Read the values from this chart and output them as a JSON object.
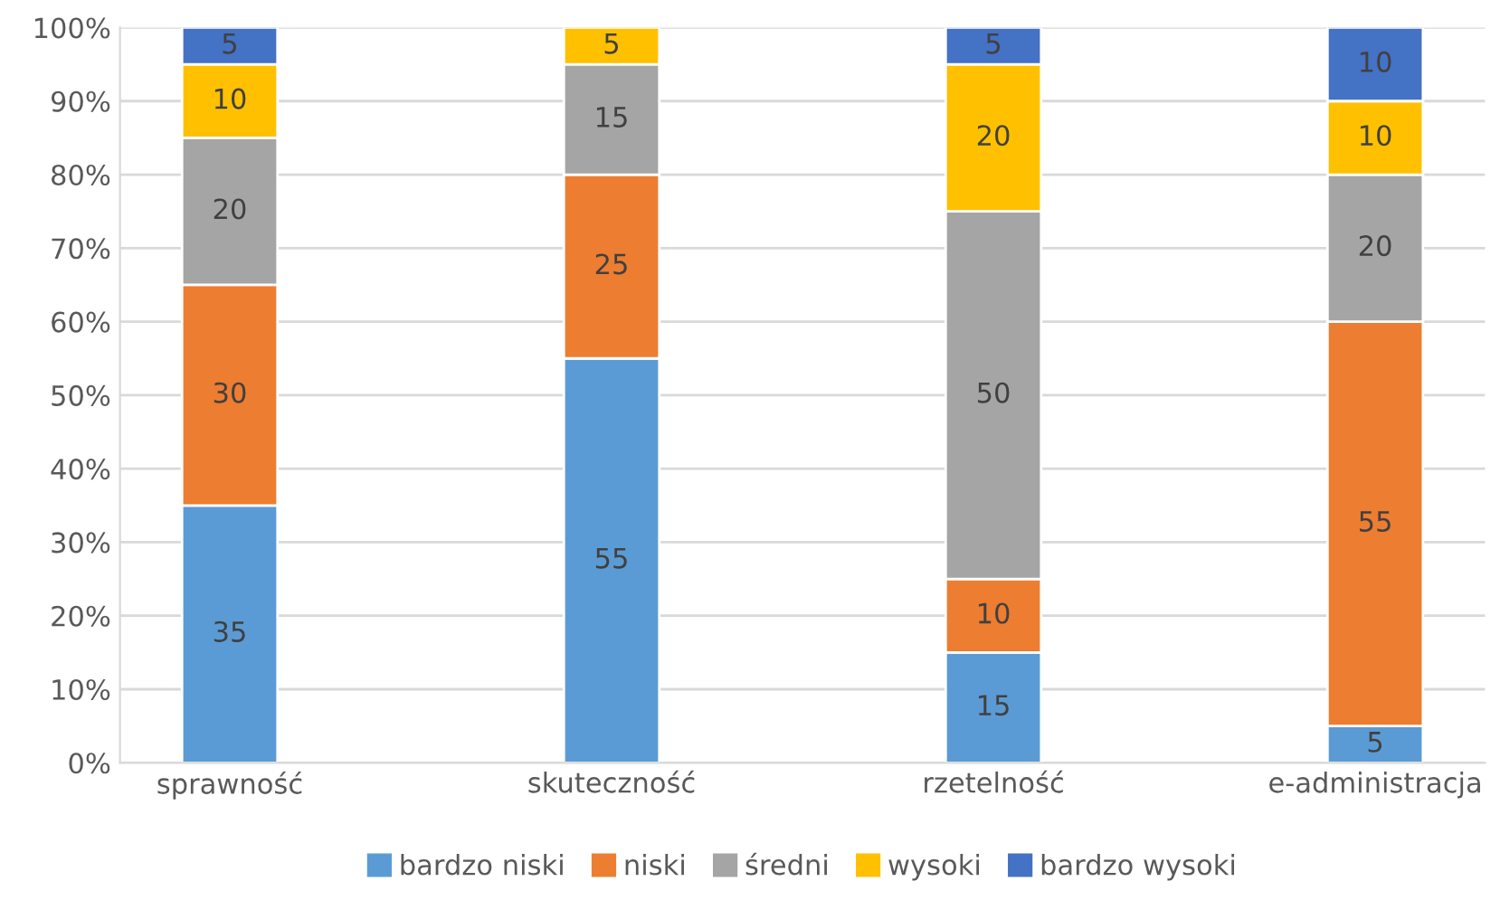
{
  "chart_data": {
    "type": "bar",
    "stacked": true,
    "categories": [
      "sprawność",
      "skuteczność",
      "rzetelność",
      "e-administracja"
    ],
    "series": [
      {
        "name": "bardzo niski",
        "color": "#5b9bd5",
        "values": [
          35,
          55,
          15,
          5
        ]
      },
      {
        "name": "niski",
        "color": "#ed7d31",
        "values": [
          30,
          25,
          10,
          55
        ]
      },
      {
        "name": "średni",
        "color": "#a5a5a5",
        "values": [
          20,
          15,
          50,
          20
        ]
      },
      {
        "name": "wysoki",
        "color": "#ffc000",
        "values": [
          10,
          5,
          20,
          10
        ]
      },
      {
        "name": "bardzo wysoki",
        "color": "#4472c4",
        "values": [
          5,
          null,
          5,
          10
        ]
      }
    ],
    "ylim": [
      0,
      100
    ],
    "yticks": [
      {
        "value": 0,
        "label": "0%"
      },
      {
        "value": 10,
        "label": "10%"
      },
      {
        "value": 20,
        "label": "20%"
      },
      {
        "value": 30,
        "label": "30%"
      },
      {
        "value": 40,
        "label": "40%"
      },
      {
        "value": 50,
        "label": "50%"
      },
      {
        "value": 60,
        "label": "60%"
      },
      {
        "value": 70,
        "label": "70%"
      },
      {
        "value": 80,
        "label": "80%"
      },
      {
        "value": 90,
        "label": "90%"
      },
      {
        "value": 100,
        "label": "100%"
      }
    ],
    "grid": "y",
    "legend": "bottom",
    "data_labels": true
  }
}
